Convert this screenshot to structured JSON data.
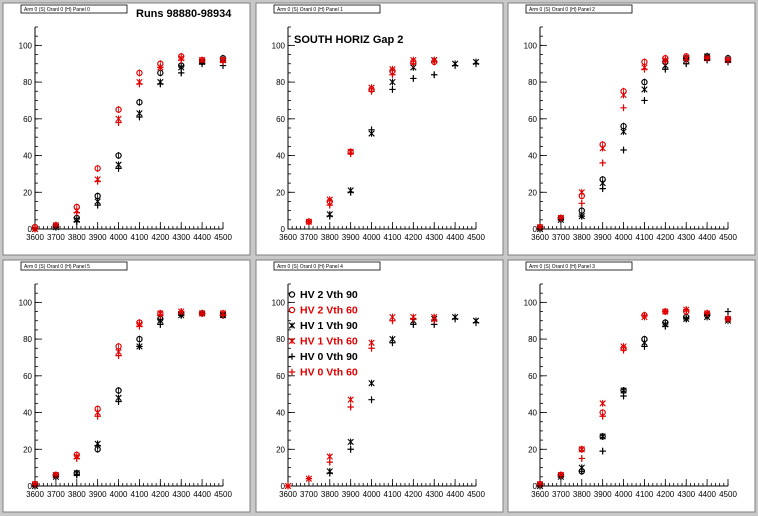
{
  "colors": {
    "black": "#000000",
    "red": "#e00000",
    "background": "#c8c8c8"
  },
  "legend": {
    "entries": [
      {
        "label": "HV 2 Vth 90",
        "marker": "circle",
        "color": "#000000"
      },
      {
        "label": "HV 2 Vth 60",
        "marker": "circle",
        "color": "#e00000"
      },
      {
        "label": "HV 1 Vth 90",
        "marker": "star",
        "color": "#000000"
      },
      {
        "label": "HV 1 Vth 60",
        "marker": "star",
        "color": "#e00000"
      },
      {
        "label": "HV 0 Vth 90",
        "marker": "plus",
        "color": "#000000"
      },
      {
        "label": "HV 0 Vth 60",
        "marker": "plus",
        "color": "#e00000"
      }
    ]
  },
  "chart_data": [
    {
      "type": "scatter",
      "title": "Arm 0 (S) Oranl 0 (H) Panel 0",
      "label": "Runs 98880-98934",
      "xlim": [
        3600,
        4500
      ],
      "ylim": [
        0,
        110
      ],
      "x_ticks": [
        3600,
        3700,
        3800,
        3900,
        4000,
        4100,
        4200,
        4300,
        4400,
        4500
      ],
      "y_ticks": [
        0,
        20,
        40,
        60,
        80,
        100
      ],
      "series": [
        {
          "marker": "circle",
          "color": "#000000",
          "x": [
            3600,
            3700,
            3800,
            3900,
            4000,
            4100,
            4200,
            4300,
            4400,
            4500
          ],
          "y": [
            1,
            2,
            6,
            18,
            40,
            69,
            85,
            89,
            91,
            93
          ]
        },
        {
          "marker": "circle",
          "color": "#e00000",
          "x": [
            3600,
            3700,
            3800,
            3900,
            4000,
            4100,
            4200,
            4300,
            4400,
            4500
          ],
          "y": [
            1,
            2,
            12,
            33,
            65,
            85,
            90,
            94,
            92,
            92
          ]
        },
        {
          "marker": "star",
          "color": "#000000",
          "x": [
            3600,
            3700,
            3800,
            3900,
            4000,
            4100,
            4200,
            4300,
            4400,
            4500
          ],
          "y": [
            0,
            1,
            5,
            15,
            35,
            63,
            80,
            88,
            91,
            92
          ]
        },
        {
          "marker": "star",
          "color": "#e00000",
          "x": [
            3600,
            3700,
            3800,
            3900,
            4000,
            4100,
            4200,
            4300,
            4400,
            4500
          ],
          "y": [
            0,
            2,
            10,
            27,
            60,
            80,
            88,
            93,
            92,
            92
          ]
        },
        {
          "marker": "plus",
          "color": "#000000",
          "x": [
            3600,
            3700,
            3800,
            3900,
            4000,
            4100,
            4200,
            4300,
            4400,
            4500
          ],
          "y": [
            0,
            1,
            4,
            13,
            33,
            61,
            79,
            85,
            90,
            89
          ]
        },
        {
          "marker": "plus",
          "color": "#e00000",
          "x": [
            3600,
            3700,
            3800,
            3900,
            4000,
            4100,
            4200,
            4300,
            4400,
            4500
          ],
          "y": [
            0,
            2,
            9,
            26,
            58,
            79,
            88,
            92,
            92,
            91
          ]
        }
      ]
    },
    {
      "type": "scatter",
      "title": "Arm 0 (S) Oranl 0 (H) Panel 1",
      "label": "SOUTH HORIZ Gap 2",
      "xlim": [
        3600,
        4500
      ],
      "ylim": [
        0,
        110
      ],
      "x_ticks": [
        3600,
        3700,
        3800,
        3900,
        4000,
        4100,
        4200,
        4300,
        4400,
        4500
      ],
      "y_ticks": [
        0,
        20,
        40,
        60,
        80,
        100
      ],
      "series": [
        {
          "marker": "circle",
          "color": "#000000",
          "x": [],
          "y": []
        },
        {
          "marker": "circle",
          "color": "#e00000",
          "x": [
            3700,
            3800,
            3900,
            4000,
            4100,
            4200,
            4300
          ],
          "y": [
            4,
            15,
            42,
            76,
            86,
            91,
            91
          ]
        },
        {
          "marker": "star",
          "color": "#000000",
          "x": [
            3800,
            3900,
            4000,
            4100,
            4200,
            4300,
            4400,
            4500
          ],
          "y": [
            8,
            21,
            52,
            80,
            88,
            92,
            90,
            91
          ]
        },
        {
          "marker": "star",
          "color": "#e00000",
          "x": [
            3700,
            3800,
            3900,
            4000,
            4100,
            4200,
            4300
          ],
          "y": [
            4,
            16,
            42,
            77,
            87,
            92,
            92
          ]
        },
        {
          "marker": "plus",
          "color": "#000000",
          "x": [
            3800,
            3900,
            4000,
            4100,
            4200,
            4300,
            4400,
            4500
          ],
          "y": [
            7,
            20,
            54,
            76,
            82,
            84,
            89,
            90
          ]
        },
        {
          "marker": "plus",
          "color": "#e00000",
          "x": [
            3700,
            3800,
            3900,
            4000,
            4100,
            4200,
            4300
          ],
          "y": [
            4,
            13,
            41,
            75,
            84,
            90,
            91
          ]
        }
      ]
    },
    {
      "type": "scatter",
      "title": "Arm 0 (S) Oranl 0 (H) Panel 2",
      "label": "",
      "xlim": [
        3600,
        4500
      ],
      "ylim": [
        0,
        110
      ],
      "x_ticks": [
        3600,
        3700,
        3800,
        3900,
        4000,
        4100,
        4200,
        4300,
        4400,
        4500
      ],
      "y_ticks": [
        0,
        20,
        40,
        60,
        80,
        100
      ],
      "series": [
        {
          "marker": "circle",
          "color": "#000000",
          "x": [
            3600,
            3700,
            3800,
            3900,
            4000,
            4100,
            4200,
            4300,
            4400,
            4500
          ],
          "y": [
            1,
            6,
            10,
            27,
            56,
            80,
            91,
            93,
            94,
            93
          ]
        },
        {
          "marker": "circle",
          "color": "#e00000",
          "x": [
            3600,
            3700,
            3800,
            3900,
            4000,
            4100,
            4200,
            4300,
            4400,
            4500
          ],
          "y": [
            1,
            6,
            18,
            46,
            75,
            91,
            93,
            94,
            93,
            92
          ]
        },
        {
          "marker": "star",
          "color": "#000000",
          "x": [
            3600,
            3700,
            3800,
            3900,
            4000,
            4100,
            4200,
            4300,
            4400,
            4500
          ],
          "y": [
            0,
            5,
            7,
            25,
            53,
            76,
            89,
            92,
            94,
            92
          ]
        },
        {
          "marker": "star",
          "color": "#e00000",
          "x": [
            3600,
            3700,
            3800,
            3900,
            4000,
            4100,
            4200,
            4300,
            4400,
            4500
          ],
          "y": [
            1,
            6,
            20,
            44,
            73,
            88,
            92,
            93,
            93,
            92
          ]
        },
        {
          "marker": "plus",
          "color": "#000000",
          "x": [
            3600,
            3700,
            3800,
            3900,
            4000,
            4100,
            4200,
            4300,
            4400,
            4500
          ],
          "y": [
            0,
            5,
            7,
            22,
            43,
            70,
            87,
            90,
            92,
            91
          ]
        },
        {
          "marker": "plus",
          "color": "#e00000",
          "x": [
            3600,
            3700,
            3800,
            3900,
            4000,
            4100,
            4200,
            4300,
            4400,
            4500
          ],
          "y": [
            1,
            6,
            14,
            36,
            66,
            87,
            91,
            92,
            93,
            92
          ]
        }
      ]
    },
    {
      "type": "scatter",
      "title": "Arm 0 (S) Oranl 0 (H) Panel 3",
      "label": "",
      "xlim": [
        3600,
        4500
      ],
      "ylim": [
        0,
        110
      ],
      "x_ticks": [
        3600,
        3700,
        3800,
        3900,
        4000,
        4100,
        4200,
        4300,
        4400,
        4500
      ],
      "y_ticks": [
        0,
        20,
        40,
        60,
        80,
        100
      ],
      "series": [
        {
          "marker": "circle",
          "color": "#000000",
          "x": [
            3600,
            3700,
            3800,
            3900,
            4000,
            4100,
            4200,
            4300,
            4400,
            4500
          ],
          "y": [
            1,
            6,
            8,
            27,
            52,
            80,
            89,
            92,
            93,
            91
          ]
        },
        {
          "marker": "circle",
          "color": "#e00000",
          "x": [
            3600,
            3700,
            3800,
            3900,
            4000,
            4100,
            4200,
            4300,
            4400,
            4500
          ],
          "y": [
            1,
            6,
            20,
            40,
            75,
            93,
            95,
            95,
            94,
            91
          ]
        },
        {
          "marker": "star",
          "color": "#000000",
          "x": [
            3600,
            3700,
            3800,
            3900,
            4000,
            4100,
            4200,
            4300,
            4400,
            4500
          ],
          "y": [
            0,
            5,
            10,
            27,
            52,
            78,
            88,
            91,
            92,
            90
          ]
        },
        {
          "marker": "star",
          "color": "#e00000",
          "x": [
            3600,
            3700,
            3800,
            3900,
            4000,
            4100,
            4200,
            4300,
            4400,
            4500
          ],
          "y": [
            1,
            6,
            20,
            45,
            76,
            92,
            95,
            96,
            94,
            91
          ]
        },
        {
          "marker": "plus",
          "color": "#000000",
          "x": [
            3600,
            3700,
            3800,
            3900,
            4000,
            4100,
            4200,
            4300,
            4400,
            4500
          ],
          "y": [
            0,
            5,
            8,
            19,
            49,
            76,
            87,
            91,
            93,
            95
          ]
        },
        {
          "marker": "plus",
          "color": "#e00000",
          "x": [
            3600,
            3700,
            3800,
            3900,
            4000,
            4100,
            4200,
            4300,
            4400,
            4500
          ],
          "y": [
            1,
            6,
            15,
            38,
            74,
            93,
            95,
            96,
            94,
            91
          ]
        }
      ]
    },
    {
      "type": "scatter",
      "title": "Arm 0 (S) Oranl 0 (H) Panel 4",
      "label": "",
      "xlim": [
        3600,
        4500
      ],
      "ylim": [
        0,
        110
      ],
      "x_ticks": [
        3600,
        3700,
        3800,
        3900,
        4000,
        4100,
        4200,
        4300,
        4400,
        4500
      ],
      "y_ticks": [
        0,
        20,
        40,
        60,
        80,
        100
      ],
      "series": [
        {
          "marker": "circle",
          "color": "#000000",
          "x": [],
          "y": []
        },
        {
          "marker": "circle",
          "color": "#e00000",
          "x": [],
          "y": []
        },
        {
          "marker": "star",
          "color": "#000000",
          "x": [
            3800,
            3900,
            4000,
            4100,
            4200,
            4300,
            4400,
            4500
          ],
          "y": [
            8,
            24,
            56,
            80,
            90,
            91,
            92,
            90
          ]
        },
        {
          "marker": "star",
          "color": "#e00000",
          "x": [
            3600,
            3700,
            3800,
            3900,
            4000,
            4100,
            4200,
            4300
          ],
          "y": [
            0,
            4,
            16,
            47,
            78,
            92,
            92,
            92
          ]
        },
        {
          "marker": "plus",
          "color": "#000000",
          "x": [
            3800,
            3900,
            4000,
            4100,
            4200,
            4300,
            4400,
            4500
          ],
          "y": [
            7,
            20,
            47,
            78,
            88,
            88,
            91,
            89
          ]
        },
        {
          "marker": "plus",
          "color": "#e00000",
          "x": [
            3600,
            3700,
            3800,
            3900,
            4000,
            4100,
            4200,
            4300
          ],
          "y": [
            0,
            4,
            13,
            43,
            75,
            90,
            91,
            90
          ]
        }
      ]
    },
    {
      "type": "scatter",
      "title": "Arm 0 (S) Oranl 0 (H) Panel 5",
      "label": "",
      "xlim": [
        3600,
        4500
      ],
      "ylim": [
        0,
        110
      ],
      "x_ticks": [
        3600,
        3700,
        3800,
        3900,
        4000,
        4100,
        4200,
        4300,
        4400,
        4500
      ],
      "y_ticks": [
        0,
        20,
        40,
        60,
        80,
        100
      ],
      "series": [
        {
          "marker": "circle",
          "color": "#000000",
          "x": [
            3600,
            3700,
            3800,
            3900,
            4000,
            4100,
            4200,
            4300,
            4400,
            4500
          ],
          "y": [
            1,
            6,
            7,
            20,
            52,
            80,
            91,
            94,
            94,
            93
          ]
        },
        {
          "marker": "circle",
          "color": "#e00000",
          "x": [
            3600,
            3700,
            3800,
            3900,
            4000,
            4100,
            4200,
            4300,
            4400,
            4500
          ],
          "y": [
            1,
            6,
            17,
            42,
            76,
            89,
            94,
            94,
            94,
            94
          ]
        },
        {
          "marker": "star",
          "color": "#000000",
          "x": [
            3600,
            3700,
            3800,
            3900,
            4000,
            4100,
            4200,
            4300,
            4400,
            4500
          ],
          "y": [
            0,
            5,
            7,
            23,
            48,
            76,
            90,
            93,
            94,
            93
          ]
        },
        {
          "marker": "star",
          "color": "#e00000",
          "x": [
            3600,
            3700,
            3800,
            3900,
            4000,
            4100,
            4200,
            4300,
            4400,
            4500
          ],
          "y": [
            1,
            6,
            16,
            40,
            73,
            88,
            94,
            95,
            94,
            94
          ]
        },
        {
          "marker": "plus",
          "color": "#000000",
          "x": [
            3600,
            3700,
            3800,
            3900,
            4000,
            4100,
            4200,
            4300,
            4400,
            4500
          ],
          "y": [
            0,
            5,
            6,
            22,
            46,
            76,
            88,
            93,
            94,
            93
          ]
        },
        {
          "marker": "plus",
          "color": "#e00000",
          "x": [
            3600,
            3700,
            3800,
            3900,
            4000,
            4100,
            4200,
            4300,
            4400,
            4500
          ],
          "y": [
            1,
            6,
            15,
            38,
            71,
            87,
            93,
            95,
            94,
            93
          ]
        }
      ]
    }
  ]
}
